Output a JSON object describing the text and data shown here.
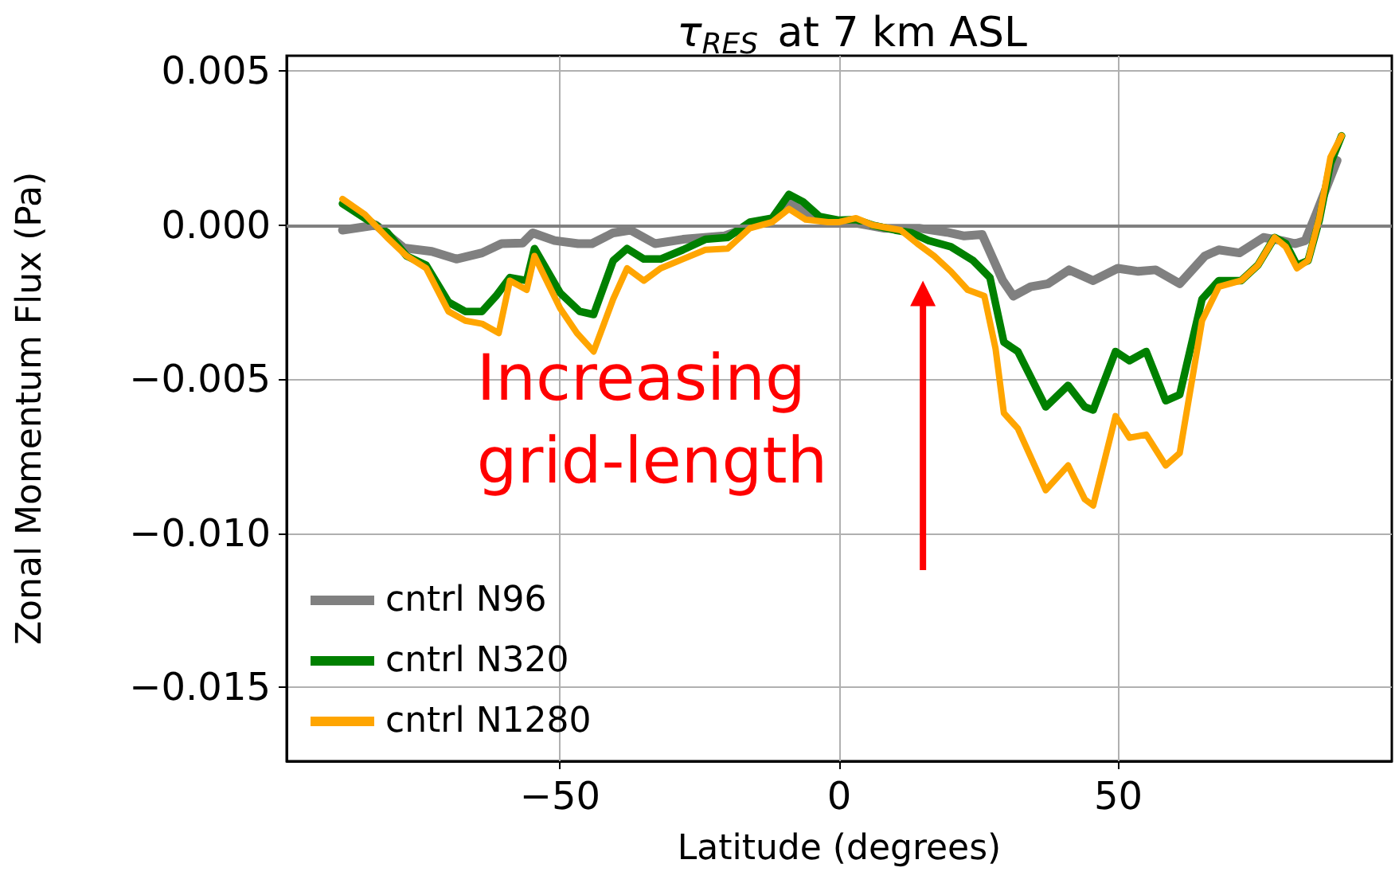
{
  "chart_data": {
    "type": "line",
    "title": "τ$_{RES}$ at 7 km ASL",
    "xlabel": "Latitude (degrees)",
    "ylabel": "Zonal Momentum Flux (Pa)",
    "xlim": [
      -99,
      99
    ],
    "xticks": [
      {
        "value": -50,
        "label": "−50"
      },
      0,
      50
    ],
    "ylim": [
      -0.0174,
      0.0055
    ],
    "yticks": [
      {
        "value": -0.015,
        "label": "−0.015"
      },
      {
        "value": -0.01,
        "label": "−0.010"
      },
      {
        "value": -0.005,
        "label": "−0.005"
      },
      {
        "value": 0,
        "label": "0.000"
      },
      {
        "value": 0.005,
        "label": "0.005"
      }
    ],
    "grid": true,
    "legend": "bottom left",
    "marker": "none",
    "line_style": "solid",
    "ref_lines": [
      {
        "axis": "y",
        "value": 0,
        "color": "#808080"
      }
    ],
    "annotations": [
      "Increasing grid-length"
    ],
    "series": [
      {
        "name": "cntrl N96",
        "color": "#808080",
        "x": [
          -89,
          -83,
          -78,
          -73,
          -68.6,
          -64,
          -60.5,
          -56.7,
          -54.9,
          -51,
          -46.8,
          -44.3,
          -40.5,
          -37.4,
          -33,
          -28,
          -20.6,
          -16.8,
          -12,
          -9.6,
          -6,
          -3,
          2,
          8,
          14.3,
          19.3,
          22.4,
          25.6,
          29.3,
          31.2,
          34.3,
          37.4,
          41.2,
          45.5,
          49.9,
          53.6,
          56.7,
          61,
          65.5,
          68,
          71.7,
          76,
          79.2,
          81.7,
          83.5,
          85.4,
          89.2
        ],
        "values": [
          -0.00016,
          0,
          -0.00074,
          -0.00085,
          -0.0011,
          -0.0009,
          -0.0006,
          -0.00058,
          -0.00025,
          -0.0005,
          -0.0006,
          -0.0006,
          -0.00025,
          -0.00016,
          -0.0006,
          -0.00046,
          -0.00035,
          -0.0001,
          0.0002,
          0.0008,
          0.0004,
          0.00016,
          0.0001,
          -0.0001,
          -0.0001,
          -0.00023,
          -0.00035,
          -0.0003,
          -0.0018,
          -0.0023,
          -0.002,
          -0.0019,
          -0.00145,
          -0.0018,
          -0.0014,
          -0.0015,
          -0.00145,
          -0.0019,
          -0.001,
          -0.0008,
          -0.0009,
          -0.0004,
          -0.0005,
          -0.0006,
          -0.0005,
          0.00035,
          0.0021
        ]
      },
      {
        "name": "cntrl N320",
        "color": "#008000",
        "x": [
          -89,
          -85,
          -81,
          -77.5,
          -74,
          -70,
          -67,
          -64,
          -61.5,
          -59,
          -56,
          -54.6,
          -50,
          -46.5,
          -44,
          -40.5,
          -38,
          -35,
          -32,
          -28,
          -24,
          -20,
          -16,
          -12,
          -9,
          -6.5,
          -3.5,
          0,
          3,
          6,
          10,
          13,
          16,
          20,
          24,
          27,
          29.5,
          32,
          37,
          41,
          44,
          45.5,
          49.5,
          52,
          55,
          58.5,
          61,
          65,
          68,
          72,
          75,
          78,
          80,
          82,
          84,
          86,
          88,
          90
        ],
        "values": [
          0.0007,
          0.00023,
          -0.00023,
          -0.001,
          -0.0013,
          -0.0025,
          -0.0028,
          -0.0028,
          -0.0023,
          -0.0017,
          -0.0018,
          -0.00076,
          -0.0022,
          -0.0028,
          -0.0029,
          -0.00115,
          -0.00076,
          -0.0011,
          -0.0011,
          -0.0008,
          -0.00046,
          -0.0004,
          0.0001,
          0.00023,
          0.001,
          0.00076,
          0.00028,
          0.00016,
          0.00018,
          0,
          -0.00016,
          -0.00025,
          -0.0005,
          -0.0007,
          -0.00115,
          -0.0017,
          -0.0038,
          -0.0041,
          -0.0059,
          -0.0052,
          -0.0059,
          -0.006,
          -0.0041,
          -0.0044,
          -0.0041,
          -0.0057,
          -0.0055,
          -0.0024,
          -0.0018,
          -0.0018,
          -0.0013,
          -0.0004,
          -0.0006,
          -0.0013,
          -0.00115,
          0.00016,
          0.002,
          0.0029
        ]
      },
      {
        "name": "cntrl N1280",
        "color": "#ffa500",
        "x": [
          -89,
          -85,
          -81,
          -77.5,
          -74,
          -70,
          -67,
          -64,
          -61,
          -59,
          -56,
          -54.6,
          -50,
          -47,
          -44,
          -40.5,
          -38,
          -35,
          -32,
          -28,
          -24,
          -20,
          -16,
          -12,
          -9,
          -6,
          -2,
          0,
          3,
          6,
          11,
          14,
          17,
          20,
          23,
          26,
          28,
          29.5,
          32,
          37,
          41,
          44,
          45.5,
          49.5,
          52,
          55,
          58.5,
          61,
          65,
          68,
          72,
          75,
          78,
          80,
          82,
          84,
          86,
          88,
          90
        ],
        "values": [
          0.00085,
          0.00035,
          -0.0004,
          -0.001,
          -0.0014,
          -0.0028,
          -0.0031,
          -0.0032,
          -0.0035,
          -0.0018,
          -0.0021,
          -0.001,
          -0.0027,
          -0.0035,
          -0.0041,
          -0.0024,
          -0.0014,
          -0.0018,
          -0.0014,
          -0.0011,
          -0.0008,
          -0.00076,
          -0.0001,
          0.0001,
          0.00053,
          0.00018,
          0.0001,
          0.0001,
          0.00023,
          0,
          -0.00016,
          -0.0006,
          -0.001,
          -0.0015,
          -0.0021,
          -0.0023,
          -0.004,
          -0.0061,
          -0.0066,
          -0.0086,
          -0.0078,
          -0.0089,
          -0.0091,
          -0.0062,
          -0.0069,
          -0.0068,
          -0.0078,
          -0.0074,
          -0.0031,
          -0.002,
          -0.0018,
          -0.0013,
          -0.0004,
          -0.0007,
          -0.0014,
          -0.00115,
          0.00023,
          0.0022,
          0.0029
        ]
      }
    ]
  }
}
